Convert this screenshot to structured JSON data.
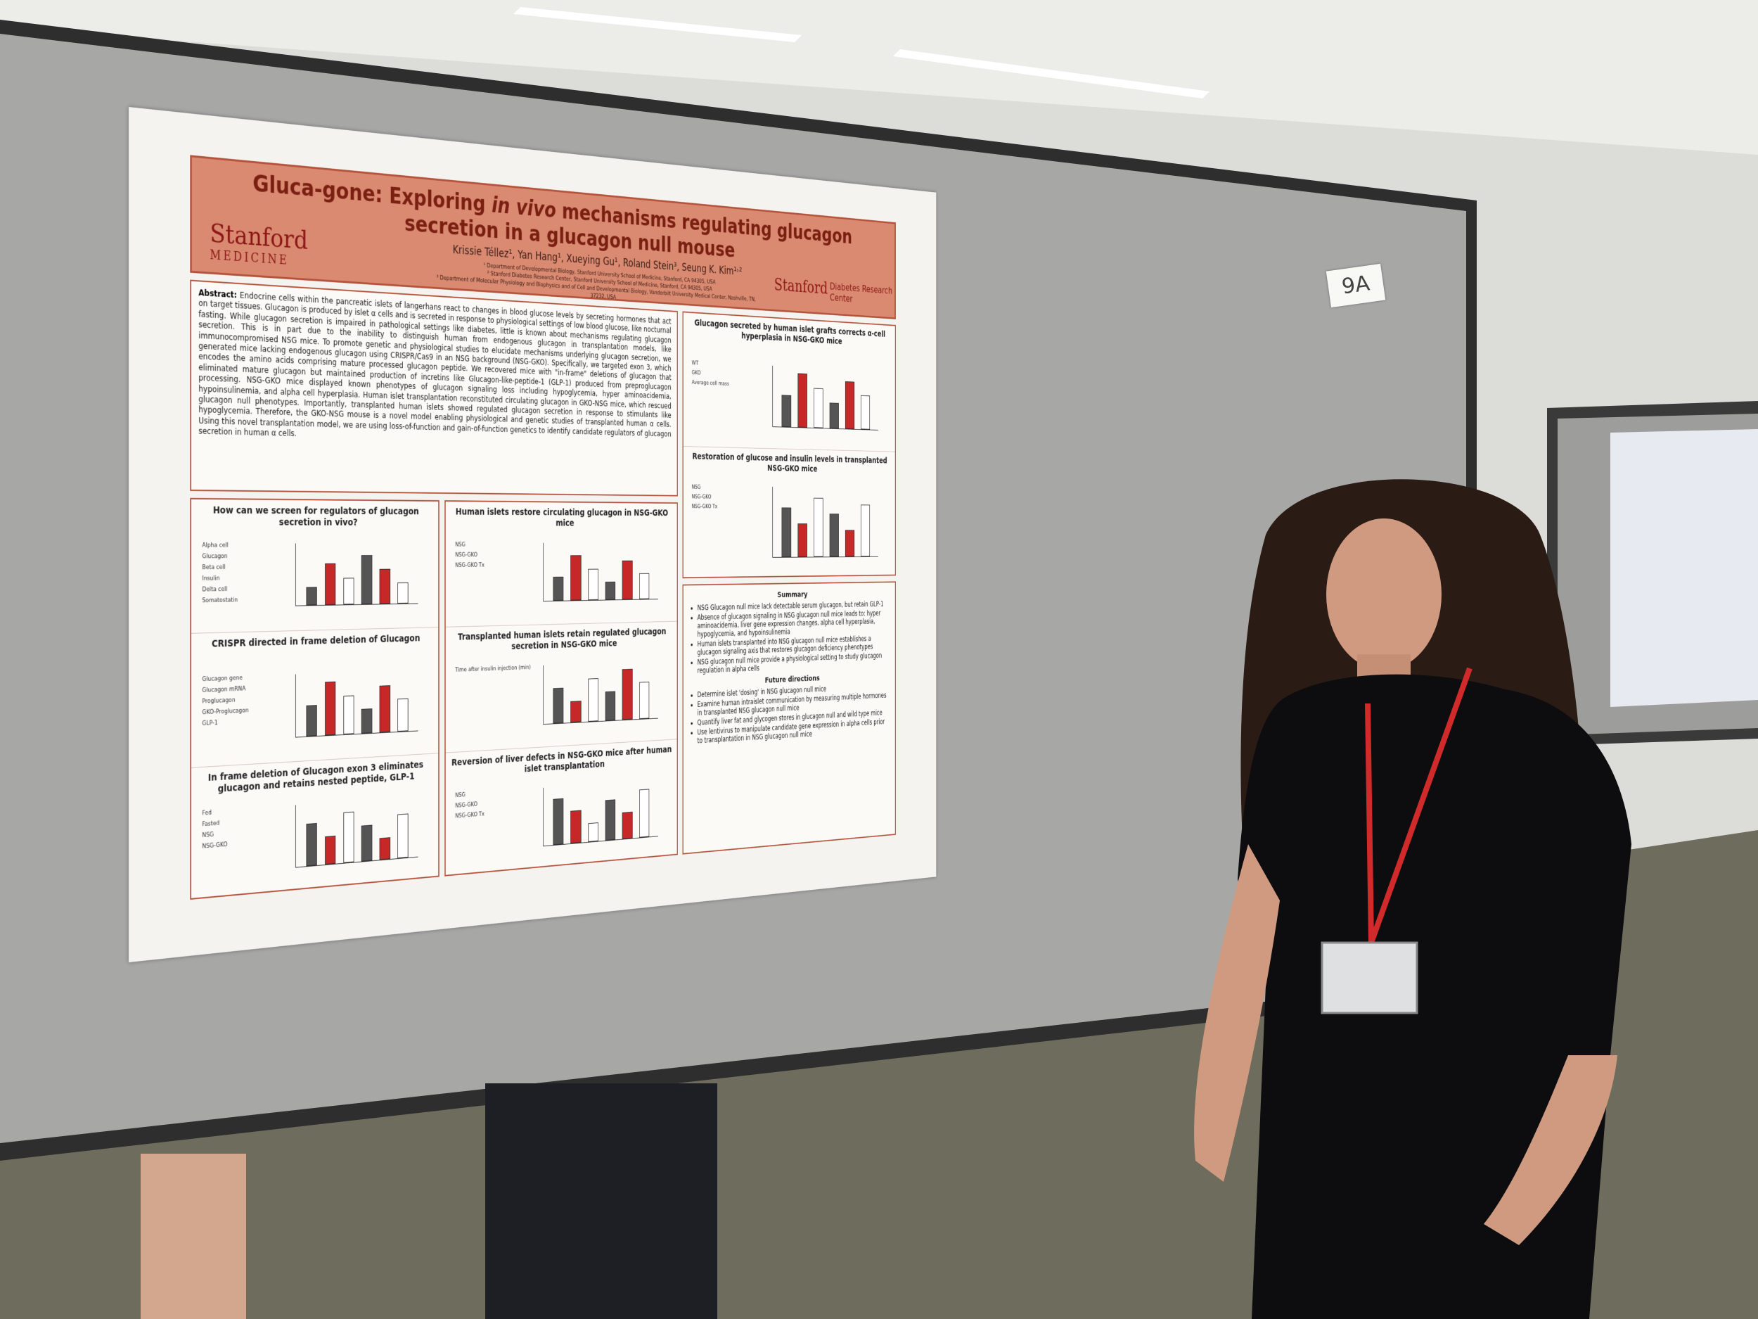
{
  "badge": "9A",
  "poster": {
    "title_parts": [
      "Gluca-gone: Exploring ",
      "in vivo",
      " mechanisms regulating glucagon secretion in a glucagon null mouse"
    ],
    "logo_left": {
      "name": "Stanford",
      "sub": "MEDICINE"
    },
    "logo_right": {
      "name": "Stanford",
      "sub": "Diabetes Research Center"
    },
    "authors": "Krissie Téllez¹, Yan Hang¹, Xueying Gu¹, Roland Stein³, Seung K. Kim¹˒²",
    "affiliations": [
      "¹ Department of Developmental Biology, Stanford University School of Medicine, Stanford, CA 94305, USA",
      "² Stanford Diabetes Research Center, Stanford University School of Medicine, Stanford, CA 94305, USA",
      "³ Department of Molecular Physiology and Biophysics and of Cell and Developmental Biology, Vanderbilt University Medical Center, Nashville, TN, 37232, USA"
    ],
    "abstract": {
      "label": "Abstract:",
      "text": "Endocrine cells within the pancreatic islets of langerhans react to changes in blood glucose levels by secreting hormones that act on target tissues. Glucagon is produced by islet α cells and is secreted in response to physiological settings of low blood glucose, like nocturnal fasting. While glucagon secretion is impaired in pathological settings like diabetes, little is known about mechanisms regulating glucagon secretion. This is in part due to the inability to distinguish human from endogenous glucagon in transplantation models, like immunocompromised NSG mice. To promote genetic and physiological studies to elucidate mechanisms underlying glucagon secretion, we generated mice lacking endogenous glucagon using CRISPR/Cas9 in an NSG background (NSG-GKO). Specifically, we targeted exon 3, which encodes the amino acids comprising mature processed glucagon peptide. We recovered mice with \"in-frame\" deletions of glucagon that eliminated mature glucagon but maintained production of incretins like Glucagon-like-peptide-1 (GLP-1) produced from preproglucagon processing. NSG-GKO mice displayed known phenotypes of glucagon signaling loss including hypoglycemia, hyper aminoacidemia, hypoinsulinemia, and alpha cell hyperplasia. Human islet transplantation reconstituted circulating glucagon in GKO-NSG mice, which rescued glucagon null phenotypes. Importantly, transplanted human islets showed regulated glucagon secretion in response to stimulants like hypoglycemia. Therefore, the GKO-NSG mouse is a novel model enabling physiological and genetic studies of transplanted human α cells. Using this novel transplantation model, we are using loss-of-function and gain-of-function genetics to identify candidate regulators of glucagon secretion in human α cells."
    },
    "columns": [
      {
        "sections": [
          {
            "title": "How can we screen for regulators of glucagon secretion in vivo?",
            "labels": [
              "Alpha cell",
              "Glucagon",
              "Beta cell",
              "Insulin",
              "Delta cell",
              "Somatostatin"
            ]
          },
          {
            "title": "CRISPR directed in frame deletion of Glucagon",
            "labels": [
              "Glucagon gene",
              "Glucagon mRNA",
              "Proglucagon",
              "GKO-Proglucagon",
              "GLP-1"
            ]
          },
          {
            "title": "In frame deletion of Glucagon exon 3 eliminates glucagon and retains nested peptide, GLP-1",
            "labels": [
              "Fed",
              "Fasted",
              "NSG",
              "NSG-GKO"
            ]
          }
        ]
      },
      {
        "sections": [
          {
            "title": "Human islets restore circulating glucagon in NSG-GKO mice",
            "labels": [
              "NSG",
              "NSG-GKO",
              "NSG-GKO Tx"
            ]
          },
          {
            "title": "Transplanted human islets retain regulated glucagon secretion in NSG-GKO mice",
            "labels": [
              "Time after insulin injection (min)"
            ]
          },
          {
            "title": "Reversion of liver defects in NSG-GKO mice after human islet transplantation",
            "labels": [
              "NSG",
              "NSG-GKO",
              "NSG-GKO Tx"
            ]
          }
        ]
      },
      {
        "sections": [
          {
            "title": "Glucagon secreted by human islet grafts corrects α-cell hyperplasia in NSG-GKO mice",
            "labels": [
              "WT",
              "GKO",
              "Average cell mass"
            ]
          },
          {
            "title": "Restoration of glucose and insulin levels in transplanted NSG-GKO mice",
            "labels": [
              "NSG",
              "NSG-GKO",
              "NSG-GKO Tx"
            ]
          }
        ]
      }
    ],
    "summary": {
      "title": "Summary",
      "items": [
        "NSG Glucagon null mice lack detectable serum glucagon, but retain GLP-1",
        "Absence of glucagon signaling in NSG glucagon null mice leads to: hyper aminoacidemia, liver gene expression changes, alpha cell hyperplasia, hypoglycemia, and hypoinsulinemia",
        "Human islets transplanted into NSG glucagon null mice establishes a glucagon signaling axis that restores glucagon deficiency phenotypes",
        "NSG glucagon null mice provide a physiological setting to study glucagon regulation in alpha cells"
      ]
    },
    "future": {
      "title": "Future directions",
      "items": [
        "Determine islet 'dosing' in NSG glucagon null mice",
        "Examine human intraislet communication by measuring multiple hormones in transplanted NSG glucagon null mice",
        "Quantify liver fat and glycogen stores in glucagon null and wild type mice",
        "Use lentivirus to manipulate candidate gene expression in alpha cells prior to transplantation in NSG glucagon null mice"
      ]
    }
  }
}
